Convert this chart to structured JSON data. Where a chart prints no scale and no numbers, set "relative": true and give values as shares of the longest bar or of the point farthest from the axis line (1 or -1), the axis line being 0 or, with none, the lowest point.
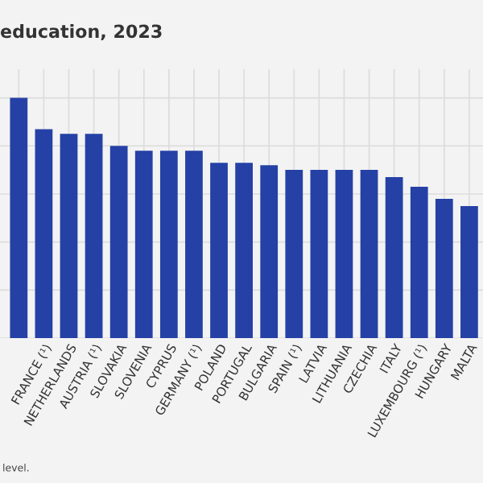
{
  "chart_data": {
    "type": "bar",
    "title": "education, 2023",
    "relative": true,
    "grid": true,
    "color": "#2541a6",
    "categories": [
      null,
      "FRANCE (¹)",
      "NETHERLANDS",
      "AUSTRIA (¹)",
      "SLOVAKIA",
      "SLOVENIA",
      "CYPRUS",
      "GERMANY (¹)",
      "POLAND",
      "PORTUGAL",
      "BULGARIA",
      "SPAIN (¹)",
      "LATVIA",
      "LITHUANIA",
      "CZECHIA",
      "ITALY",
      "LUXEMBOURG (¹)",
      "HUNGARY",
      "MALTA"
    ],
    "values": [
      1,
      0.87,
      0.85,
      0.85,
      0.8,
      0.78,
      0.78,
      0.78,
      0.73,
      0.73,
      0.72,
      0.7,
      0.7,
      0.7,
      0.7,
      0.67,
      0.63,
      0.58,
      0.55
    ],
    "annotations": [
      "level."
    ]
  }
}
